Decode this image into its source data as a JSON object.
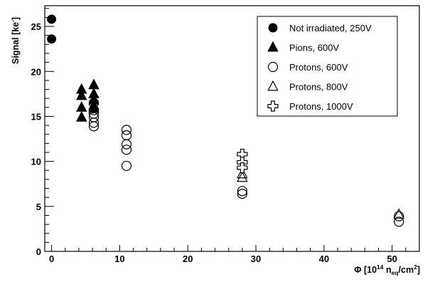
{
  "chart_data": {
    "type": "scatter",
    "title": "",
    "xlabel": {
      "prefix": "Φ [10",
      "exp": "14",
      "n": " n",
      "sub": "eq",
      "unit": "/cm",
      "unit_exp": "2",
      "suffix": "]"
    },
    "ylabel": {
      "main": "Signal [ke",
      "sup": "-",
      "suffix": "]"
    },
    "xlim": [
      -1,
      54
    ],
    "ylim": [
      0,
      27.3
    ],
    "xticks": [
      0,
      10,
      20,
      30,
      40,
      50
    ],
    "yticks": [
      0,
      5,
      10,
      15,
      20,
      25
    ],
    "grid": false,
    "legend_position": "top-right",
    "series": [
      {
        "name": "Not irradiated, 250V",
        "marker": "filled-circle",
        "points": [
          [
            0,
            25.8
          ],
          [
            0,
            23.6
          ]
        ]
      },
      {
        "name": "Pions, 600V",
        "marker": "filled-triangle",
        "points": [
          [
            4.4,
            18.0
          ],
          [
            4.4,
            17.3
          ],
          [
            4.4,
            16.0
          ],
          [
            4.4,
            14.9
          ],
          [
            6.2,
            18.5
          ],
          [
            6.2,
            17.5
          ],
          [
            6.2,
            16.8
          ],
          [
            6.2,
            16.2
          ],
          [
            6.2,
            15.9
          ]
        ]
      },
      {
        "name": "Protons, 600V",
        "marker": "open-circle",
        "points": [
          [
            6.2,
            16.5
          ],
          [
            6.2,
            15.7
          ],
          [
            6.2,
            15.3
          ],
          [
            6.2,
            14.9
          ],
          [
            6.2,
            14.3
          ],
          [
            6.2,
            13.9
          ],
          [
            11.0,
            13.5
          ],
          [
            11.0,
            12.9
          ],
          [
            11.0,
            11.9
          ],
          [
            11.0,
            11.3
          ],
          [
            11.0,
            9.5
          ],
          [
            28.0,
            6.7
          ],
          [
            28.0,
            6.4
          ],
          [
            51.0,
            3.9
          ],
          [
            51.0,
            3.3
          ]
        ]
      },
      {
        "name": "Protons, 800V",
        "marker": "open-triangle",
        "points": [
          [
            28.0,
            8.6
          ],
          [
            28.0,
            8.2
          ],
          [
            51.0,
            4.1
          ]
        ]
      },
      {
        "name": "Protons, 1000V",
        "marker": "open-cross",
        "points": [
          [
            28.0,
            10.8
          ],
          [
            28.0,
            9.9
          ],
          [
            28.0,
            9.3
          ]
        ]
      }
    ]
  }
}
